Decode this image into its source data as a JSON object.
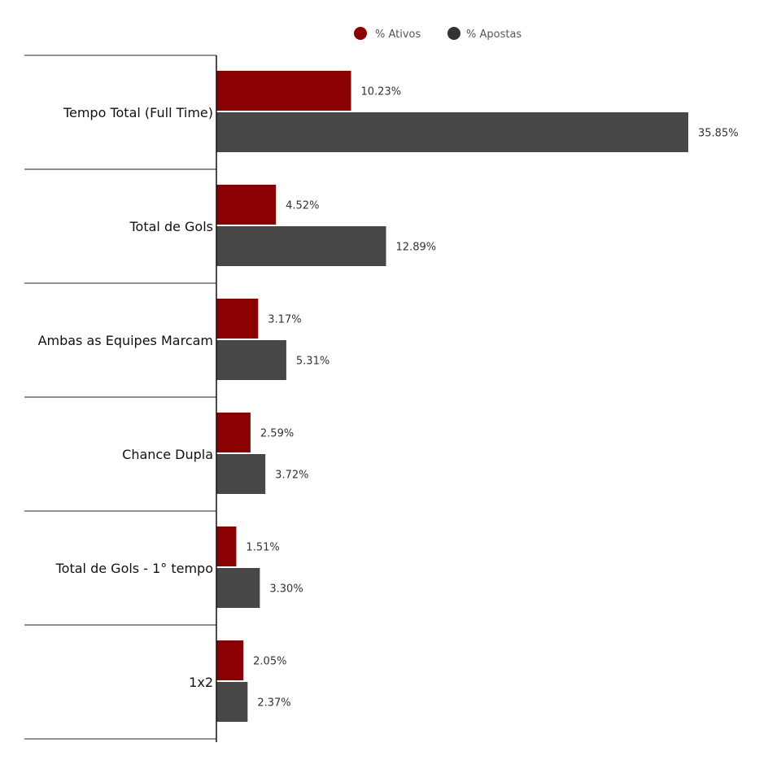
{
  "chart_data": {
    "type": "bar",
    "orientation": "horizontal",
    "title": "",
    "xlabel": "",
    "ylabel": "",
    "grid": false,
    "legend_position": "top-center",
    "categories": [
      "Tempo Total (Full Time)",
      "Total de Gols",
      "Ambas as Equipes Marcam",
      "Chance Dupla",
      "Total de Gols - 1° tempo",
      "1x2"
    ],
    "series": [
      {
        "name": "% Ativos",
        "color": "#8b0000",
        "values": [
          10.23,
          4.52,
          3.17,
          2.59,
          1.51,
          2.05
        ],
        "labels": [
          "10.23%",
          "4.52%",
          "3.17%",
          "2.59%",
          "1.51%",
          "2.05%"
        ]
      },
      {
        "name": "% Apostas",
        "color": "#474747",
        "legend_color": "#333333",
        "values": [
          35.85,
          12.89,
          5.31,
          3.72,
          3.3,
          2.37
        ],
        "labels": [
          "35.85%",
          "12.89%",
          "5.31%",
          "3.72%",
          "3.30%",
          "2.37%"
        ]
      }
    ],
    "xlim": [
      0,
      36
    ]
  }
}
